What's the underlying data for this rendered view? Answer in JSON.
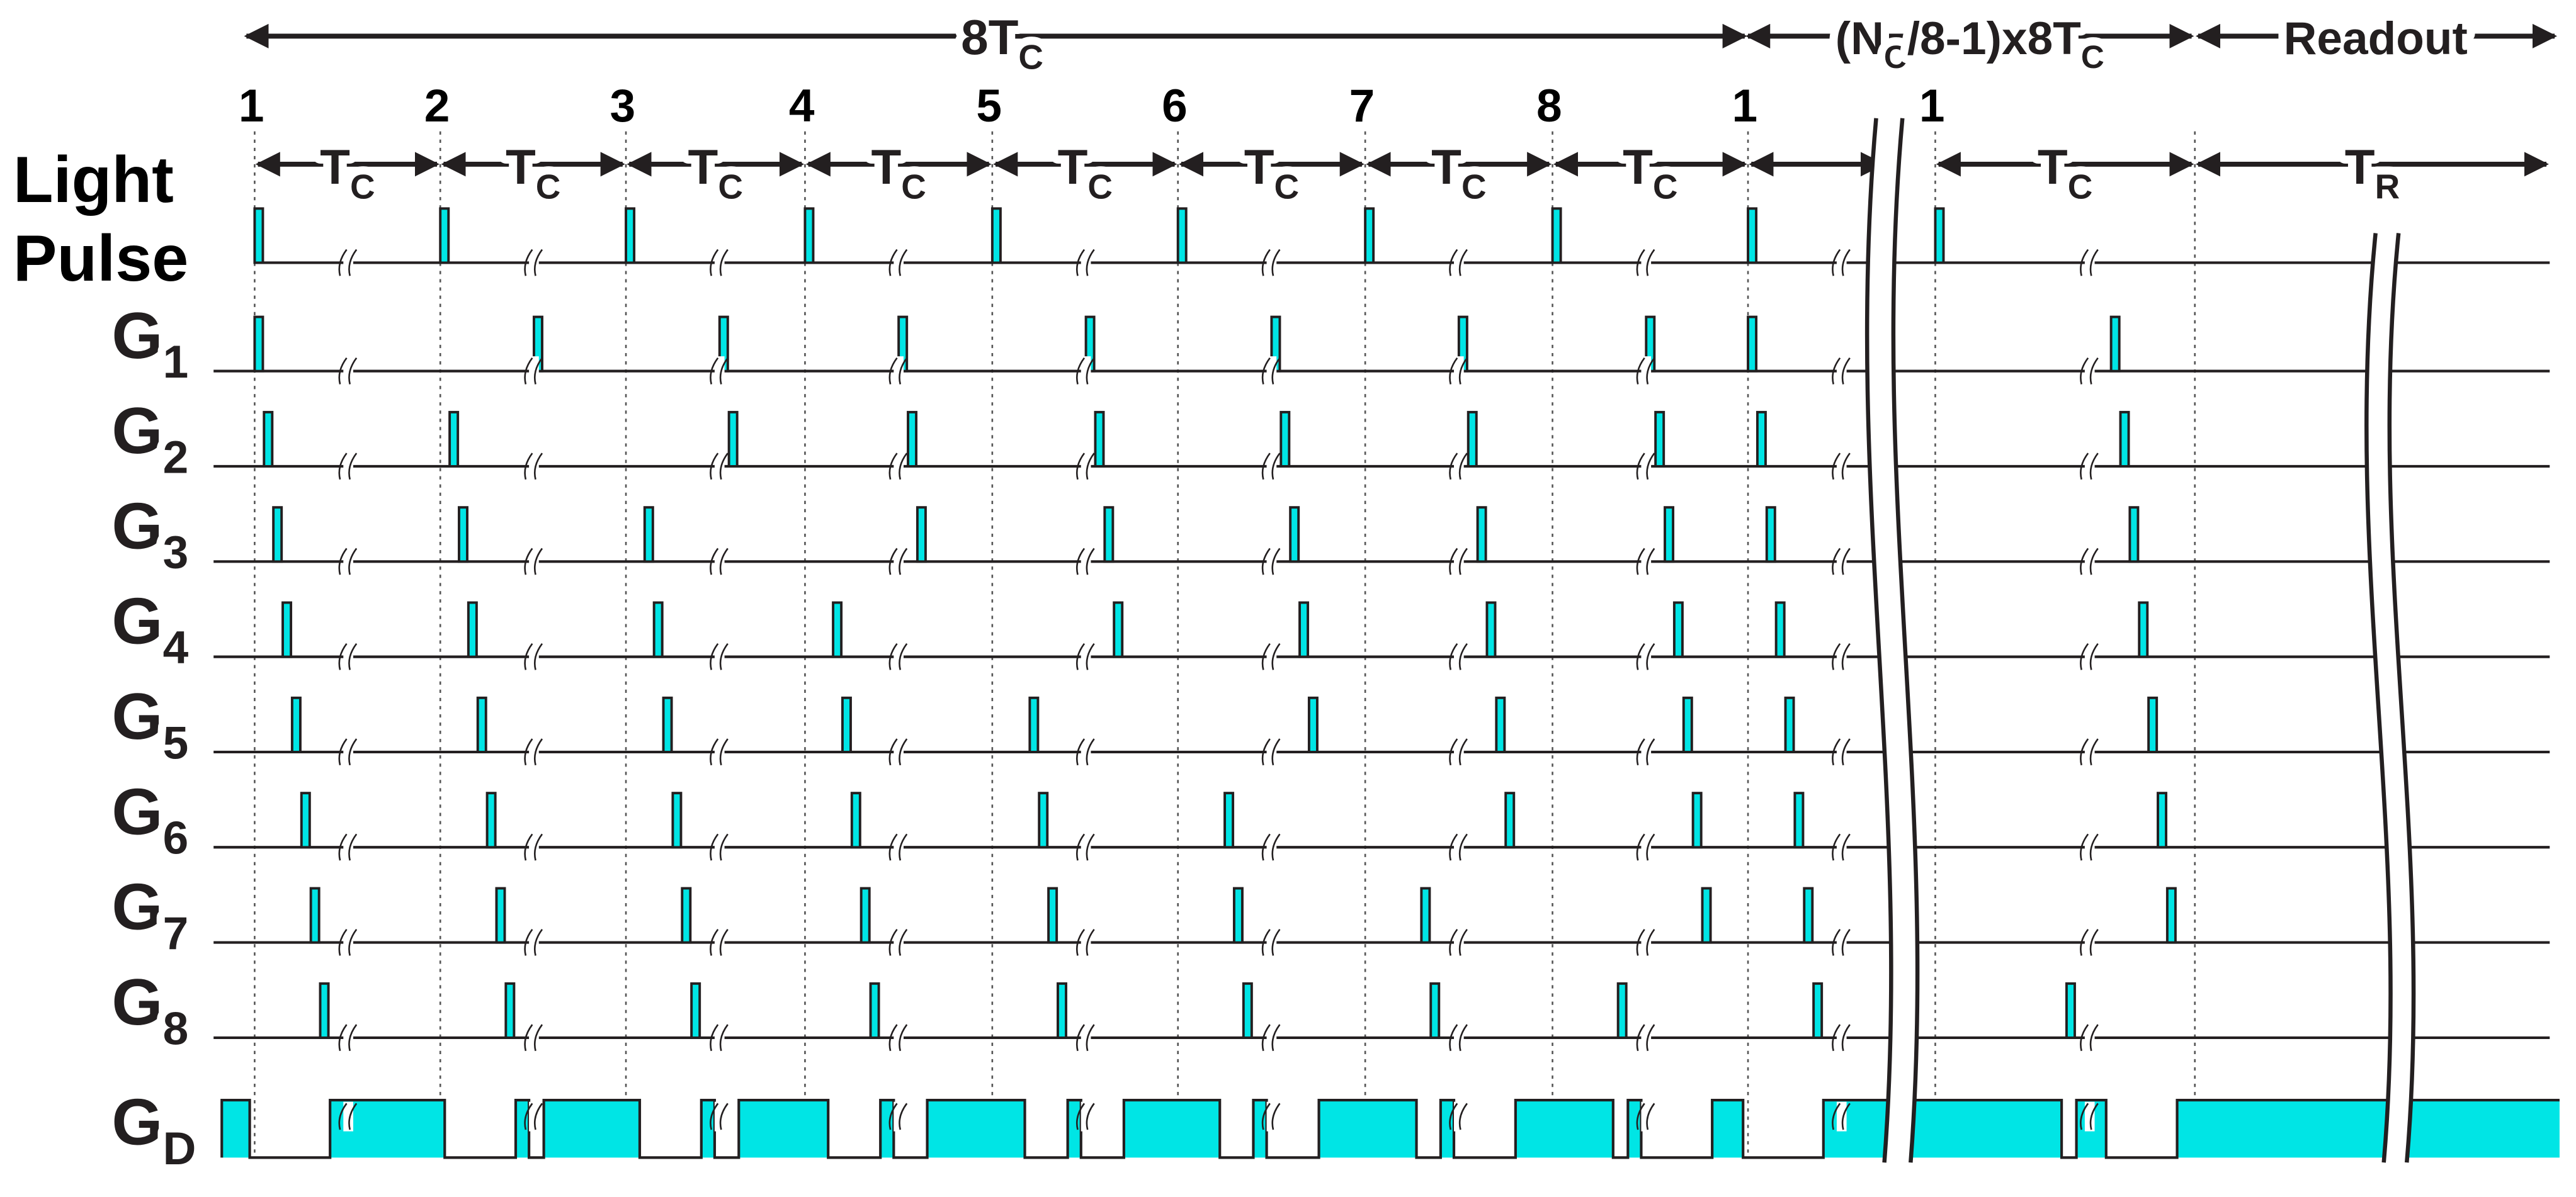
{
  "header": {
    "total": {
      "text": "8T",
      "sub": "C"
    },
    "repeat": {
      "text": "(N",
      "sub": "C",
      "text2": "/8-1)x8T",
      "sub2": "C"
    },
    "readout": "Readout"
  },
  "cycle_numbers": [
    "1",
    "2",
    "3",
    "4",
    "5",
    "6",
    "7",
    "8",
    "1",
    "1"
  ],
  "intervals": [
    {
      "text": "T",
      "sub": "C"
    },
    {
      "text": "T",
      "sub": "C"
    },
    {
      "text": "T",
      "sub": "C"
    },
    {
      "text": "T",
      "sub": "C"
    },
    {
      "text": "T",
      "sub": "C"
    },
    {
      "text": "T",
      "sub": "C"
    },
    {
      "text": "T",
      "sub": "C"
    },
    {
      "text": "T",
      "sub": "C"
    },
    {
      "text": "T",
      "sub": "C"
    },
    {
      "text": "T",
      "sub": "R"
    }
  ],
  "rows": [
    {
      "lines": [
        "Light",
        "Pulse"
      ]
    },
    {
      "text": "G",
      "sub": "1"
    },
    {
      "text": "G",
      "sub": "2"
    },
    {
      "text": "G",
      "sub": "3"
    },
    {
      "text": "G",
      "sub": "4"
    },
    {
      "text": "G",
      "sub": "5"
    },
    {
      "text": "G",
      "sub": "6"
    },
    {
      "text": "G",
      "sub": "7"
    },
    {
      "text": "G",
      "sub": "8"
    },
    {
      "text": "G",
      "sub": "D"
    }
  ]
}
